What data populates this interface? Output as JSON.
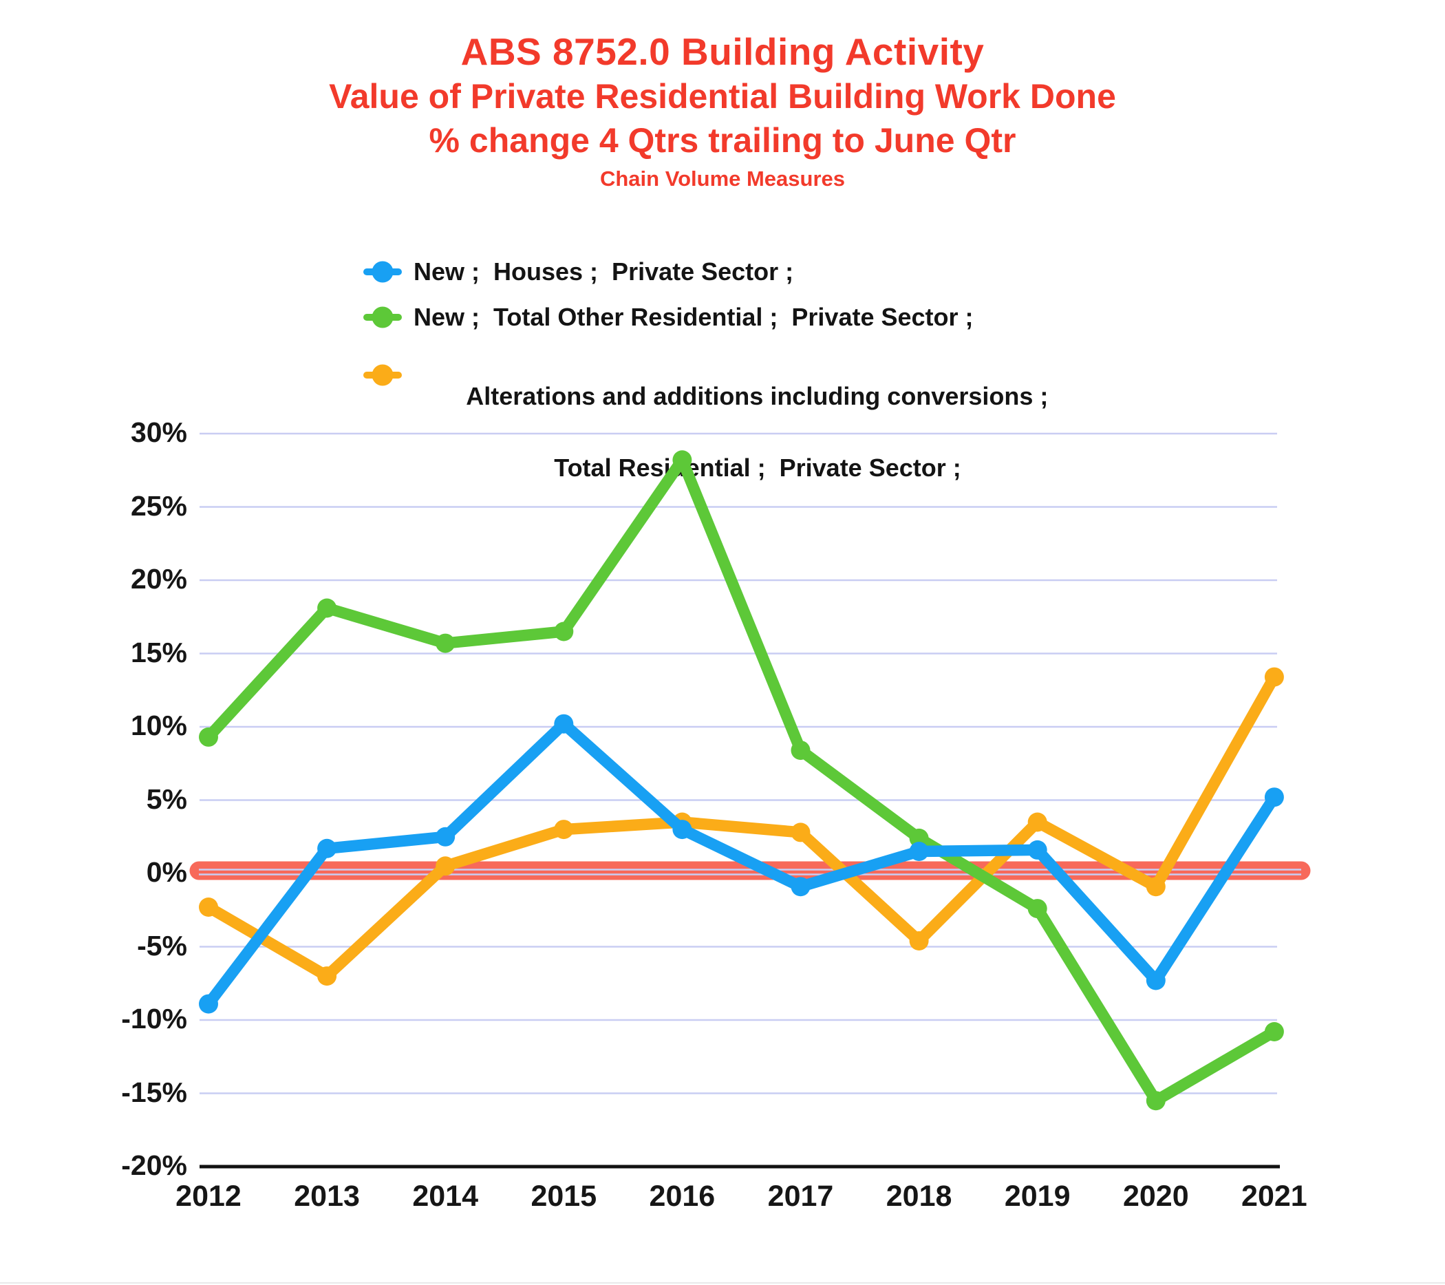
{
  "title": {
    "line1": "ABS 8752.0 Building Activity",
    "line2": "Value of Private Residential Building Work Done",
    "line3": "% change 4 Qtrs trailing to June Qtr",
    "line4": "Chain Volume Measures"
  },
  "colors": {
    "title_red": "#f23a2b",
    "series_blue": "#18a0f3",
    "series_green": "#5dc838",
    "series_orange": "#fbac18",
    "zero_band_red": "#f7695a",
    "gridline_lavender": "#c9cdf3",
    "axis_black": "#111111",
    "text_black": "#141414"
  },
  "legend": {
    "items": [
      {
        "lines": [
          "New ;  Houses ;  Private Sector ;"
        ]
      },
      {
        "lines": [
          "New ;  Total Other Residential ;  Private Sector ;"
        ]
      },
      {
        "lines": [
          "Alterations and additions including conversions ;",
          "Total Residential ;  Private Sector ;"
        ]
      }
    ]
  },
  "chart_data": {
    "type": "line",
    "title": "ABS 8752.0 Building Activity — Value of Private Residential Building Work Done, % change 4 Qtrs trailing to June Qtr (Chain Volume Measures)",
    "categories": [
      "2012",
      "2013",
      "2014",
      "2015",
      "2016",
      "2017",
      "2018",
      "2019",
      "2020",
      "2021"
    ],
    "series": [
      {
        "name": "New ;  Houses ;  Private Sector ;",
        "color": "#18a0f3",
        "values": [
          -8.9,
          1.7,
          2.5,
          10.2,
          3.0,
          -0.9,
          1.5,
          1.6,
          -7.3,
          5.2
        ]
      },
      {
        "name": "New ;  Total Other Residential ;  Private Sector ;",
        "color": "#5dc838",
        "values": [
          9.3,
          18.1,
          15.7,
          16.5,
          28.2,
          8.4,
          2.4,
          -2.4,
          -15.5,
          -10.8
        ]
      },
      {
        "name": "Alterations and additions including conversions ; Total Residential ;  Private Sector ;",
        "color": "#fbac18",
        "values": [
          -2.3,
          -7.0,
          0.5,
          3.0,
          3.5,
          2.8,
          -4.6,
          3.5,
          -0.9,
          13.4
        ]
      }
    ],
    "baseline": {
      "value": 0,
      "color": "#f7695a",
      "label": "zero reference band"
    },
    "xlabel": "",
    "ylabel": "",
    "ylim": [
      -20,
      30
    ],
    "yticks": [
      30,
      25,
      20,
      15,
      10,
      5,
      0,
      -5,
      -10,
      -15,
      -20
    ],
    "ytick_suffix": "%",
    "grid": true,
    "legend_position": "top-left-above-plot"
  }
}
